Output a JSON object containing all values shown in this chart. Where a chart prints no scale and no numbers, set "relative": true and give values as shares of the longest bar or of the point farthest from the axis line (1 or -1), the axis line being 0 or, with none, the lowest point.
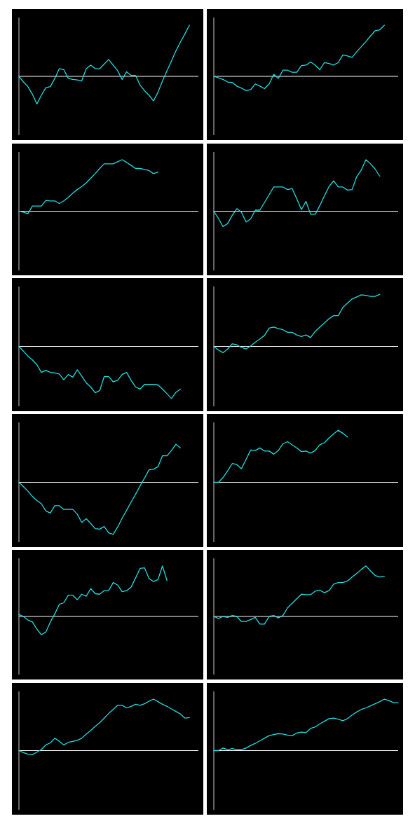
{
  "chart_data": [
    {
      "type": "line",
      "relative": true,
      "color": "#22dde0",
      "categories": [
        null,
        null,
        null,
        null,
        null,
        null,
        null,
        null,
        null,
        null,
        null,
        null,
        null,
        null,
        null,
        null,
        null,
        null,
        null,
        null,
        null,
        null,
        null,
        null,
        null,
        null,
        null,
        null,
        null,
        null,
        null,
        null,
        null,
        null,
        null,
        null,
        null,
        null,
        null,
        null,
        null
      ],
      "values": [
        0,
        -0.11,
        -0.2,
        -0.35,
        -0.54,
        -0.37,
        -0.22,
        -0.2,
        -0.04,
        0.15,
        0.13,
        -0.04,
        -0.06,
        -0.07,
        -0.09,
        0.15,
        0.22,
        0.15,
        0.15,
        0.24,
        0.33,
        0.22,
        0.11,
        -0.06,
        0.09,
        0.02,
        0.02,
        -0.17,
        -0.28,
        -0.37,
        -0.48,
        -0.31,
        -0.09,
        0.11,
        0.3,
        0.5,
        0.67,
        0.83,
        1,
        null,
        null
      ]
    },
    {
      "type": "line",
      "relative": true,
      "color": "#22dde0",
      "categories": [
        null,
        null,
        null,
        null,
        null,
        null,
        null,
        null,
        null,
        null,
        null,
        null,
        null,
        null,
        null,
        null,
        null,
        null,
        null,
        null,
        null,
        null,
        null,
        null,
        null,
        null,
        null,
        null,
        null,
        null,
        null,
        null,
        null,
        null,
        null,
        null,
        null,
        null,
        null,
        null,
        null
      ],
      "values": [
        0,
        -0.03,
        -0.06,
        -0.11,
        -0.12,
        -0.19,
        -0.23,
        -0.28,
        -0.26,
        -0.15,
        -0.19,
        -0.24,
        -0.15,
        0.04,
        -0.04,
        0.12,
        0.12,
        0.08,
        0.08,
        0.21,
        0.22,
        0.28,
        0.22,
        0.13,
        0.27,
        0.25,
        0.22,
        0.27,
        0.42,
        0.4,
        0.37,
        0.48,
        0.58,
        0.68,
        0.79,
        0.89,
        0.91,
        1,
        null,
        null,
        null
      ]
    },
    {
      "type": "line",
      "relative": true,
      "color": "#22dde0",
      "categories": [
        null,
        null,
        null,
        null,
        null,
        null,
        null,
        null,
        null,
        null,
        null,
        null,
        null,
        null,
        null,
        null,
        null,
        null,
        null,
        null,
        null,
        null,
        null,
        null,
        null,
        null,
        null,
        null,
        null,
        null,
        null,
        null,
        null,
        null,
        null,
        null,
        null,
        null,
        null,
        null,
        null
      ],
      "values": [
        0,
        -0.02,
        -0.05,
        0.1,
        0.1,
        0.1,
        0.21,
        0.2,
        0.2,
        0.15,
        0.2,
        0.27,
        0.35,
        0.42,
        0.48,
        0.55,
        0.64,
        0.73,
        0.83,
        0.92,
        0.92,
        0.92,
        0.96,
        1,
        0.95,
        0.89,
        0.83,
        0.83,
        0.81,
        0.79,
        0.73,
        0.76,
        null,
        null,
        null,
        null,
        null,
        null,
        null,
        null,
        null
      ]
    },
    {
      "type": "line",
      "relative": true,
      "color": "#22dde0",
      "categories": [
        null,
        null,
        null,
        null,
        null,
        null,
        null,
        null,
        null,
        null,
        null,
        null,
        null,
        null,
        null,
        null,
        null,
        null,
        null,
        null,
        null,
        null,
        null,
        null,
        null,
        null,
        null,
        null,
        null,
        null,
        null,
        null,
        null,
        null,
        null,
        null,
        null,
        null,
        null,
        null,
        null
      ],
      "values": [
        0,
        -0.14,
        -0.3,
        -0.24,
        -0.08,
        0.05,
        -0.02,
        -0.21,
        -0.15,
        0.02,
        0.02,
        0.17,
        0.32,
        0.47,
        0.47,
        0.47,
        0.42,
        0.44,
        0.24,
        0.03,
        0.19,
        -0.06,
        -0.06,
        0.11,
        0.3,
        0.48,
        0.59,
        0.47,
        0.47,
        0.41,
        0.42,
        0.67,
        0.8,
        1,
        0.92,
        0.82,
        0.68,
        null,
        null,
        null,
        null
      ]
    },
    {
      "type": "line",
      "relative": true,
      "color": "#22dde0",
      "categories": [
        null,
        null,
        null,
        null,
        null,
        null,
        null,
        null,
        null,
        null,
        null,
        null,
        null,
        null,
        null,
        null,
        null,
        null,
        null,
        null,
        null,
        null,
        null,
        null,
        null,
        null,
        null,
        null,
        null,
        null,
        null,
        null,
        null,
        null,
        null,
        null,
        null,
        null,
        null,
        null,
        null
      ],
      "values": [
        0,
        -0.09,
        -0.19,
        -0.26,
        -0.35,
        -0.5,
        -0.46,
        -0.5,
        -0.51,
        -0.53,
        -0.64,
        -0.54,
        -0.59,
        -0.45,
        -0.57,
        -0.7,
        -0.78,
        -0.89,
        -0.85,
        -0.58,
        -0.58,
        -0.68,
        -0.65,
        -0.54,
        -0.5,
        -0.65,
        -0.78,
        -0.82,
        -0.73,
        -0.73,
        -0.73,
        -0.74,
        -0.82,
        -0.91,
        -1,
        -0.88,
        -0.82,
        null,
        null,
        null,
        null
      ]
    },
    {
      "type": "line",
      "relative": true,
      "color": "#22dde0",
      "categories": [
        null,
        null,
        null,
        null,
        null,
        null,
        null,
        null,
        null,
        null,
        null,
        null,
        null,
        null,
        null,
        null,
        null,
        null,
        null,
        null,
        null,
        null,
        null,
        null,
        null,
        null,
        null,
        null,
        null,
        null,
        null,
        null,
        null,
        null,
        null,
        null,
        null,
        null,
        null,
        null,
        null
      ],
      "values": [
        0,
        -0.07,
        -0.12,
        -0.05,
        0.05,
        0.03,
        -0.02,
        -0.05,
        0.01,
        0.08,
        0.14,
        0.21,
        0.35,
        0.37,
        0.34,
        0.32,
        0.27,
        0.27,
        0.22,
        0.19,
        0.22,
        0.17,
        0.29,
        0.37,
        0.45,
        0.53,
        0.59,
        0.59,
        0.75,
        0.83,
        0.91,
        0.95,
        0.99,
        0.98,
        0.96,
        0.96,
        1,
        null,
        null,
        null,
        null
      ]
    },
    {
      "type": "line",
      "relative": true,
      "color": "#22dde0",
      "categories": [
        null,
        null,
        null,
        null,
        null,
        null,
        null,
        null,
        null,
        null,
        null,
        null,
        null,
        null,
        null,
        null,
        null,
        null,
        null,
        null,
        null,
        null,
        null,
        null,
        null,
        null,
        null,
        null,
        null,
        null,
        null,
        null,
        null,
        null,
        null,
        null,
        null,
        null,
        null,
        null,
        null
      ],
      "values": [
        0,
        -0.08,
        -0.17,
        -0.27,
        -0.35,
        -0.41,
        -0.55,
        -0.59,
        -0.45,
        -0.45,
        -0.52,
        -0.52,
        -0.52,
        -0.61,
        -0.77,
        -0.7,
        -0.79,
        -0.89,
        -0.9,
        -0.85,
        -0.97,
        -1,
        -0.86,
        -0.69,
        -0.54,
        -0.38,
        -0.23,
        -0.07,
        0.08,
        0.24,
        0.25,
        0.3,
        0.51,
        0.51,
        0.61,
        0.73,
        0.66,
        null,
        null,
        null,
        null
      ]
    },
    {
      "type": "line",
      "relative": true,
      "color": "#22dde0",
      "categories": [
        null,
        null,
        null,
        null,
        null,
        null,
        null,
        null,
        null,
        null,
        null,
        null,
        null,
        null,
        null,
        null,
        null,
        null,
        null,
        null,
        null,
        null,
        null,
        null,
        null,
        null,
        null,
        null,
        null,
        null,
        null,
        null,
        null,
        null,
        null,
        null,
        null,
        null,
        null,
        null,
        null
      ],
      "values": [
        0,
        0,
        0.09,
        0.22,
        0.36,
        0.34,
        0.26,
        0.44,
        0.62,
        0.61,
        0.66,
        0.6,
        0.6,
        0.54,
        0.61,
        0.74,
        0.78,
        0.72,
        0.66,
        0.59,
        0.6,
        0.56,
        0.61,
        0.72,
        0.76,
        0.85,
        0.93,
        1,
        0.94,
        0.87,
        null,
        null,
        null,
        null,
        null,
        null,
        null,
        null,
        null,
        null,
        null
      ]
    },
    {
      "type": "line",
      "relative": true,
      "color": "#22dde0",
      "categories": [
        null,
        null,
        null,
        null,
        null,
        null,
        null,
        null,
        null,
        null,
        null,
        null,
        null,
        null,
        null,
        null,
        null,
        null,
        null,
        null,
        null,
        null,
        null,
        null,
        null,
        null,
        null,
        null,
        null,
        null,
        null,
        null,
        null,
        null,
        null,
        null,
        null,
        null,
        null,
        null,
        null
      ],
      "values": [
        0.04,
        0,
        -0.07,
        -0.11,
        -0.25,
        -0.36,
        -0.31,
        -0.11,
        0.05,
        0.24,
        0.27,
        0.42,
        0.42,
        0.33,
        0.44,
        0.4,
        0.55,
        0.45,
        0.44,
        0.51,
        0.51,
        0.67,
        0.62,
        0.49,
        0.51,
        0.58,
        0.76,
        0.95,
        0.96,
        0.75,
        0.69,
        0.73,
        1,
        0.71,
        null,
        null,
        null,
        null,
        null,
        null,
        null
      ]
    },
    {
      "type": "line",
      "relative": true,
      "color": "#22dde0",
      "categories": [
        null,
        null,
        null,
        null,
        null,
        null,
        null,
        null,
        null,
        null,
        null,
        null,
        null,
        null,
        null,
        null,
        null,
        null,
        null,
        null,
        null,
        null,
        null,
        null,
        null,
        null,
        null,
        null,
        null,
        null,
        null,
        null,
        null,
        null,
        null,
        null,
        null,
        null,
        null,
        null,
        null
      ],
      "values": [
        0,
        -0.04,
        0,
        -0.02,
        0.02,
        0,
        -0.1,
        -0.1,
        -0.06,
        -0.02,
        -0.15,
        -0.15,
        0,
        0.02,
        -0.03,
        0.02,
        0.17,
        0.26,
        0.35,
        0.44,
        0.43,
        0.43,
        0.5,
        0.52,
        0.47,
        0.51,
        0.64,
        0.67,
        0.67,
        0.7,
        0.78,
        0.85,
        0.93,
        1,
        0.9,
        0.81,
        0.78,
        0.79,
        null,
        null,
        null
      ]
    },
    {
      "type": "line",
      "relative": true,
      "color": "#22dde0",
      "categories": [
        null,
        null,
        null,
        null,
        null,
        null,
        null,
        null,
        null,
        null,
        null,
        null,
        null,
        null,
        null,
        null,
        null,
        null,
        null,
        null,
        null,
        null,
        null,
        null,
        null,
        null,
        null,
        null,
        null,
        null,
        null,
        null,
        null,
        null,
        null,
        null,
        null,
        null,
        null,
        null,
        null
      ],
      "values": [
        0,
        -0.04,
        -0.07,
        -0.08,
        -0.03,
        0.02,
        0.11,
        0.15,
        0.24,
        0.18,
        0.11,
        0.16,
        0.18,
        0.2,
        0.24,
        0.32,
        0.39,
        0.47,
        0.54,
        0.63,
        0.72,
        0.8,
        0.88,
        0.88,
        0.83,
        0.86,
        0.9,
        0.88,
        0.91,
        0.96,
        1,
        0.95,
        0.9,
        0.86,
        0.81,
        0.76,
        0.71,
        0.63,
        0.64,
        null,
        null
      ]
    },
    {
      "type": "line",
      "relative": true,
      "color": "#22dde0",
      "categories": [
        null,
        null,
        null,
        null,
        null,
        null,
        null,
        null,
        null,
        null,
        null,
        null,
        null,
        null,
        null,
        null,
        null,
        null,
        null,
        null,
        null,
        null,
        null,
        null,
        null,
        null,
        null,
        null,
        null,
        null,
        null,
        null,
        null,
        null,
        null,
        null,
        null,
        null,
        null,
        null,
        null
      ],
      "values": [
        0,
        0,
        0.05,
        0.02,
        0.04,
        0.02,
        0.02,
        0.05,
        0.1,
        0.14,
        0.19,
        0.24,
        0.29,
        0.31,
        0.33,
        0.32,
        0.3,
        0.29,
        0.34,
        0.36,
        0.35,
        0.43,
        0.46,
        0.52,
        0.57,
        0.62,
        0.63,
        0.61,
        0.58,
        0.62,
        0.69,
        0.75,
        0.8,
        0.83,
        0.87,
        0.91,
        0.95,
        1,
        0.97,
        0.93,
        0.93
      ]
    }
  ]
}
